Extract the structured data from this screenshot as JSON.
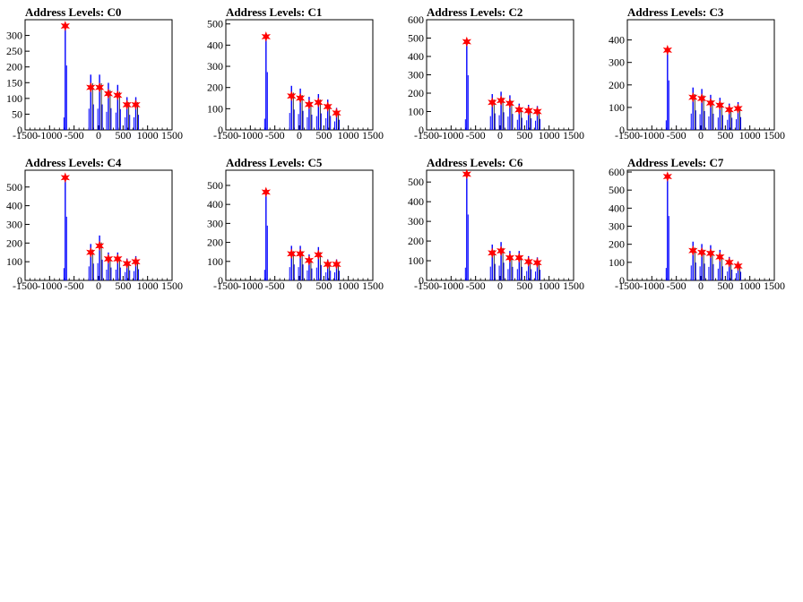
{
  "colors": {
    "histogram": "#0000ff",
    "marker": "#ff0000",
    "axes": "#000000"
  },
  "chart_data": [
    {
      "type": "bar",
      "title": "Address Levels: C0",
      "xlim": [
        -1500,
        1500
      ],
      "ylim": [
        0,
        350
      ],
      "xticks": [
        -1500,
        -1000,
        -500,
        0,
        500,
        1000,
        1500
      ],
      "yticks": [
        0,
        50,
        100,
        150,
        200,
        250,
        300
      ],
      "peaks": [
        {
          "x": -680,
          "y": 330
        },
        {
          "x": -160,
          "y": 135
        },
        {
          "x": 20,
          "y": 135
        },
        {
          "x": 200,
          "y": 115
        },
        {
          "x": 390,
          "y": 110
        },
        {
          "x": 580,
          "y": 80
        },
        {
          "x": 760,
          "y": 80
        }
      ]
    },
    {
      "type": "bar",
      "title": "Address Levels: C1",
      "xlim": [
        -1500,
        1500
      ],
      "ylim": [
        0,
        520
      ],
      "xticks": [
        -1500,
        -1000,
        -500,
        0,
        500,
        1000,
        1500
      ],
      "yticks": [
        0,
        100,
        200,
        300,
        400,
        500
      ],
      "peaks": [
        {
          "x": -680,
          "y": 440
        },
        {
          "x": -160,
          "y": 160
        },
        {
          "x": 20,
          "y": 150
        },
        {
          "x": 200,
          "y": 120
        },
        {
          "x": 390,
          "y": 130
        },
        {
          "x": 580,
          "y": 110
        },
        {
          "x": 760,
          "y": 80
        }
      ]
    },
    {
      "type": "bar",
      "title": "Address Levels: C2",
      "xlim": [
        -1500,
        1500
      ],
      "ylim": [
        0,
        600
      ],
      "xticks": [
        -1500,
        -1000,
        -500,
        0,
        500,
        1000,
        1500
      ],
      "yticks": [
        0,
        100,
        200,
        300,
        400,
        500,
        600
      ],
      "peaks": [
        {
          "x": -680,
          "y": 480
        },
        {
          "x": -160,
          "y": 150
        },
        {
          "x": 20,
          "y": 160
        },
        {
          "x": 200,
          "y": 145
        },
        {
          "x": 390,
          "y": 110
        },
        {
          "x": 580,
          "y": 105
        },
        {
          "x": 760,
          "y": 100
        }
      ]
    },
    {
      "type": "bar",
      "title": "Address Levels: C3",
      "xlim": [
        -1500,
        1500
      ],
      "ylim": [
        0,
        490
      ],
      "xticks": [
        -1500,
        -1000,
        -500,
        0,
        500,
        1000,
        1500
      ],
      "yticks": [
        0,
        100,
        200,
        300,
        400
      ],
      "peaks": [
        {
          "x": -680,
          "y": 355
        },
        {
          "x": -160,
          "y": 145
        },
        {
          "x": 20,
          "y": 140
        },
        {
          "x": 200,
          "y": 120
        },
        {
          "x": 390,
          "y": 110
        },
        {
          "x": 580,
          "y": 90
        },
        {
          "x": 760,
          "y": 95
        }
      ]
    },
    {
      "type": "bar",
      "title": "Address Levels: C4",
      "xlim": [
        -1500,
        1500
      ],
      "ylim": [
        0,
        590
      ],
      "xticks": [
        -1500,
        -1000,
        -500,
        0,
        500,
        1000,
        1500
      ],
      "yticks": [
        0,
        100,
        200,
        300,
        400,
        500
      ],
      "peaks": [
        {
          "x": -680,
          "y": 550
        },
        {
          "x": -160,
          "y": 150
        },
        {
          "x": 20,
          "y": 185
        },
        {
          "x": 200,
          "y": 115
        },
        {
          "x": 390,
          "y": 115
        },
        {
          "x": 580,
          "y": 90
        },
        {
          "x": 760,
          "y": 100
        }
      ]
    },
    {
      "type": "bar",
      "title": "Address Levels: C5",
      "xlim": [
        -1500,
        1500
      ],
      "ylim": [
        0,
        580
      ],
      "xticks": [
        -1500,
        -1000,
        -500,
        0,
        500,
        1000,
        1500
      ],
      "yticks": [
        0,
        100,
        200,
        300,
        400,
        500
      ],
      "peaks": [
        {
          "x": -680,
          "y": 465
        },
        {
          "x": -160,
          "y": 140
        },
        {
          "x": 20,
          "y": 140
        },
        {
          "x": 200,
          "y": 105
        },
        {
          "x": 390,
          "y": 135
        },
        {
          "x": 580,
          "y": 85
        },
        {
          "x": 760,
          "y": 85
        }
      ]
    },
    {
      "type": "bar",
      "title": "Address Levels: C6",
      "xlim": [
        -1500,
        1500
      ],
      "ylim": [
        0,
        560
      ],
      "xticks": [
        -1500,
        -1000,
        -500,
        0,
        500,
        1000,
        1500
      ],
      "yticks": [
        0,
        100,
        200,
        300,
        400,
        500
      ],
      "peaks": [
        {
          "x": -680,
          "y": 540
        },
        {
          "x": -160,
          "y": 140
        },
        {
          "x": 20,
          "y": 150
        },
        {
          "x": 200,
          "y": 115
        },
        {
          "x": 390,
          "y": 115
        },
        {
          "x": 580,
          "y": 95
        },
        {
          "x": 760,
          "y": 90
        }
      ]
    },
    {
      "type": "bar",
      "title": "Address Levels: C7",
      "xlim": [
        -1500,
        1500
      ],
      "ylim": [
        0,
        610
      ],
      "xticks": [
        -1500,
        -1000,
        -500,
        0,
        500,
        1000,
        1500
      ],
      "yticks": [
        0,
        100,
        200,
        300,
        400,
        500,
        600
      ],
      "peaks": [
        {
          "x": -680,
          "y": 575
        },
        {
          "x": -160,
          "y": 165
        },
        {
          "x": 20,
          "y": 155
        },
        {
          "x": 200,
          "y": 150
        },
        {
          "x": 390,
          "y": 130
        },
        {
          "x": 580,
          "y": 100
        },
        {
          "x": 760,
          "y": 80
        }
      ]
    }
  ]
}
